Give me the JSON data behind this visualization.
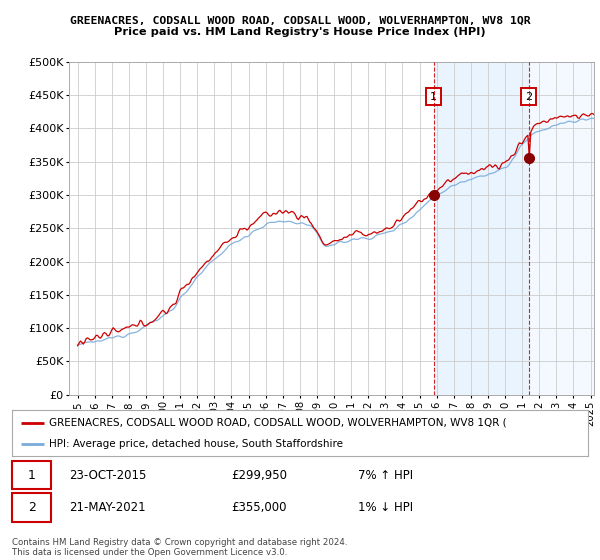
{
  "title": "GREENACRES, CODSALL WOOD ROAD, CODSALL WOOD, WOLVERHAMPTON, WV8 1QR",
  "subtitle": "Price paid vs. HM Land Registry's House Price Index (HPI)",
  "ylim": [
    0,
    500000
  ],
  "yticks": [
    0,
    50000,
    100000,
    150000,
    200000,
    250000,
    300000,
    350000,
    400000,
    450000,
    500000
  ],
  "ytick_labels": [
    "£0",
    "£50K",
    "£100K",
    "£150K",
    "£200K",
    "£250K",
    "£300K",
    "£350K",
    "£400K",
    "£450K",
    "£500K"
  ],
  "legend_line1": "GREENACRES, CODSALL WOOD ROAD, CODSALL WOOD, WOLVERHAMPTON, WV8 1QR (",
  "legend_line2": "HPI: Average price, detached house, South Staffordshire",
  "line1_color": "#cc0000",
  "line2_color": "#7aabdb",
  "shade_color": "#ddeeff",
  "annotation1_label": "1",
  "annotation2_label": "2",
  "annotation1_date": "23-OCT-2015",
  "annotation1_price": "£299,950",
  "annotation1_hpi": "7% ↑ HPI",
  "annotation2_date": "21-MAY-2021",
  "annotation2_price": "£355,000",
  "annotation2_hpi": "1% ↓ HPI",
  "footer": "Contains HM Land Registry data © Crown copyright and database right 2024.\nThis data is licensed under the Open Government Licence v3.0.",
  "vline1_x": 2015.82,
  "vline2_x": 2021.38,
  "sale1_x": 2015.82,
  "sale1_y": 299950,
  "sale2_x": 2021.38,
  "sale2_y": 355000,
  "xmin": 1994.5,
  "xmax": 2025.2
}
